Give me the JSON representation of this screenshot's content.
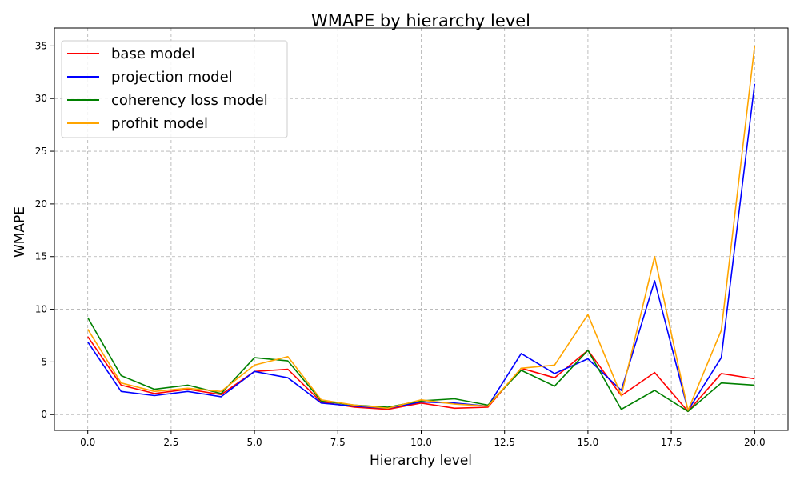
{
  "chart_data": {
    "type": "line",
    "title": "WMAPE by hierarchy level",
    "xlabel": "Hierarchy level",
    "ylabel": "WMAPE",
    "xlim": [
      -1,
      21
    ],
    "ylim": [
      -1.5,
      36.7
    ],
    "xticks": [
      0.0,
      2.5,
      5.0,
      7.5,
      10.0,
      12.5,
      15.0,
      17.5,
      20.0
    ],
    "xtick_labels": [
      "0.0",
      "2.5",
      "5.0",
      "7.5",
      "10.0",
      "12.5",
      "15.0",
      "17.5",
      "20.0"
    ],
    "yticks": [
      0,
      5,
      10,
      15,
      20,
      25,
      30,
      35
    ],
    "ytick_labels": [
      "0",
      "5",
      "10",
      "15",
      "20",
      "25",
      "30",
      "35"
    ],
    "grid": true,
    "legend_position": "top-left",
    "x": [
      0,
      1,
      2,
      3,
      4,
      5,
      6,
      7,
      8,
      9,
      10,
      11,
      12,
      13,
      14,
      15,
      16,
      17,
      18,
      19,
      20
    ],
    "series": [
      {
        "name": "base model",
        "color": "#ff0000",
        "values": [
          7.4,
          2.8,
          2.0,
          2.4,
          1.9,
          4.1,
          4.3,
          1.2,
          0.7,
          0.5,
          1.1,
          0.6,
          0.7,
          4.4,
          3.5,
          6.1,
          1.8,
          4.0,
          0.3,
          3.9,
          3.4
        ]
      },
      {
        "name": "projection model",
        "color": "#0000ff",
        "values": [
          6.9,
          2.2,
          1.8,
          2.2,
          1.7,
          4.1,
          3.5,
          1.1,
          0.8,
          0.6,
          1.2,
          1.1,
          0.8,
          5.8,
          3.9,
          5.3,
          2.3,
          12.7,
          0.4,
          5.4,
          31.4
        ]
      },
      {
        "name": "coherency loss model",
        "color": "#008000",
        "values": [
          9.2,
          3.7,
          2.4,
          2.8,
          2.0,
          5.4,
          5.1,
          1.3,
          0.9,
          0.7,
          1.3,
          1.5,
          0.9,
          4.2,
          2.7,
          6.1,
          0.5,
          2.3,
          0.3,
          3.0,
          2.8
        ]
      },
      {
        "name": "profhit model",
        "color": "#ffa500",
        "values": [
          8.1,
          3.0,
          2.2,
          2.5,
          2.2,
          4.7,
          5.5,
          1.4,
          0.9,
          0.6,
          1.4,
          1.0,
          0.8,
          4.4,
          4.7,
          9.5,
          1.8,
          15.0,
          0.4,
          8.0,
          35.0
        ]
      }
    ]
  }
}
